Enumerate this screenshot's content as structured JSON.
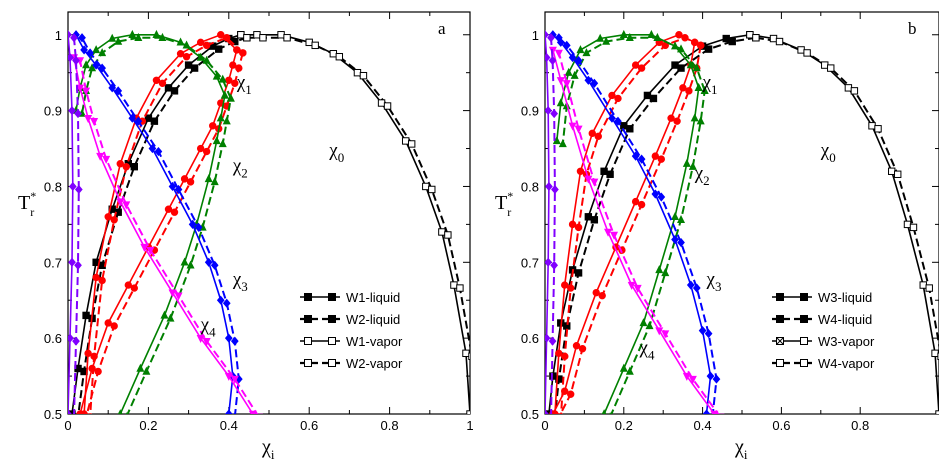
{
  "chart_data": [
    {
      "type": "line",
      "panel_letter": "a",
      "xlabel_main": "χ",
      "xlabel_sub": "i",
      "ylabel_main": "T",
      "ylabel_sup": "*",
      "ylabel_sub": "r",
      "xlim": [
        0,
        1
      ],
      "ylim": [
        0.5,
        1.03
      ],
      "xticks": [
        "0",
        "0.2",
        "0.4",
        "0.6",
        "0.8",
        "1"
      ],
      "yticks": [
        "0.5",
        "0.6",
        "0.7",
        "0.8",
        "0.9",
        "1"
      ],
      "xtick_values": [
        0,
        0.2,
        0.4,
        0.6,
        0.8,
        1.0
      ],
      "ytick_values": [
        0.5,
        0.6,
        0.7,
        0.8,
        0.9,
        1.0
      ],
      "legend": [
        "W1-liquid",
        "W2-liquid",
        "W1-vapor",
        "W2-vapor"
      ],
      "curve_labels": [
        {
          "main": "χ",
          "sub": "0",
          "x": 0.65,
          "y": 0.84
        },
        {
          "main": "χ",
          "sub": "1",
          "x": 0.42,
          "y": 0.93
        },
        {
          "main": "χ",
          "sub": "2",
          "x": 0.41,
          "y": 0.82
        },
        {
          "main": "χ",
          "sub": "3",
          "x": 0.41,
          "y": 0.67
        },
        {
          "main": "χ",
          "sub": "4",
          "x": 0.33,
          "y": 0.61
        }
      ],
      "series": [
        {
          "color": "#000000",
          "x": [
            0.43,
            0.4,
            0.36,
            0.3,
            0.25,
            0.2,
            0.15,
            0.11,
            0.07,
            0.045,
            0.025,
            0.01
          ],
          "y": [
            1.0,
            0.995,
            0.985,
            0.96,
            0.93,
            0.89,
            0.83,
            0.77,
            0.7,
            0.63,
            0.56,
            0.5
          ]
        },
        {
          "color": "#000000",
          "x": [
            0.43,
            0.47,
            0.53,
            0.6,
            0.66,
            0.72,
            0.78,
            0.84,
            0.89,
            0.93,
            0.96,
            0.99,
            1.0
          ],
          "y": [
            1.0,
            1.0,
            1.0,
            0.99,
            0.975,
            0.95,
            0.91,
            0.86,
            0.8,
            0.74,
            0.67,
            0.58,
            0.5
          ]
        },
        {
          "color": "#ff0000",
          "x": [
            0.42,
            0.41,
            0.4,
            0.38,
            0.36,
            0.33,
            0.29,
            0.25,
            0.2,
            0.15,
            0.1,
            0.06,
            0.03
          ],
          "y": [
            0.98,
            0.96,
            0.94,
            0.91,
            0.88,
            0.85,
            0.81,
            0.77,
            0.72,
            0.67,
            0.62,
            0.56,
            0.5
          ]
        },
        {
          "color": "#ff0000",
          "x": [
            0.42,
            0.38,
            0.33,
            0.28,
            0.22,
            0.17,
            0.13,
            0.1,
            0.07,
            0.05,
            0.04
          ],
          "y": [
            0.98,
            1.0,
            0.99,
            0.975,
            0.94,
            0.89,
            0.83,
            0.76,
            0.68,
            0.58,
            0.5
          ]
        },
        {
          "color": "#008000",
          "x": [
            0.13,
            0.18,
            0.24,
            0.29,
            0.32,
            0.35,
            0.37,
            0.38,
            0.39
          ],
          "y": [
            0.5,
            0.56,
            0.63,
            0.7,
            0.75,
            0.81,
            0.86,
            0.89,
            0.92
          ]
        },
        {
          "color": "#008000",
          "x": [
            0.39,
            0.37,
            0.33,
            0.28,
            0.22,
            0.16,
            0.11,
            0.07,
            0.045,
            0.03,
            0.02
          ],
          "y": [
            0.92,
            0.945,
            0.97,
            0.99,
            1.0,
            1.0,
            0.995,
            0.98,
            0.96,
            0.93,
            0.9
          ]
        },
        {
          "color": "#0000ff",
          "x": [
            0.4,
            0.41,
            0.4,
            0.38,
            0.35,
            0.31,
            0.26,
            0.21,
            0.16,
            0.11,
            0.07,
            0.04,
            0.02
          ],
          "y": [
            0.5,
            0.55,
            0.6,
            0.65,
            0.7,
            0.75,
            0.8,
            0.85,
            0.89,
            0.93,
            0.96,
            0.98,
            1.0
          ]
        },
        {
          "color": "#ff00ff",
          "x": [
            0.46,
            0.4,
            0.33,
            0.26,
            0.19,
            0.13,
            0.08,
            0.05,
            0.03,
            0.015
          ],
          "y": [
            0.5,
            0.55,
            0.6,
            0.66,
            0.72,
            0.78,
            0.84,
            0.89,
            0.93,
            0.97
          ]
        },
        {
          "color": "#8000ff",
          "x": [
            0.0,
            0.005,
            0.01,
            0.012,
            0.01,
            0.005,
            0.0
          ],
          "y": [
            0.5,
            0.6,
            0.7,
            0.8,
            0.9,
            0.97,
            1.0
          ]
        }
      ]
    },
    {
      "type": "line",
      "panel_letter": "b",
      "xlabel_main": "χ",
      "xlabel_sub": "i",
      "ylabel_main": "T",
      "ylabel_sup": "*",
      "ylabel_sub": "r",
      "xlim": [
        0,
        1
      ],
      "ylim": [
        0.5,
        1.03
      ],
      "xticks": [
        "0",
        "0.2",
        "0.4",
        "0.6",
        "0.8"
      ],
      "yticks": [
        "0.5",
        "0.6",
        "0.7",
        "0.8",
        "0.9",
        "1"
      ],
      "xtick_values": [
        0,
        0.2,
        0.4,
        0.6,
        0.8
      ],
      "ytick_values": [
        0.5,
        0.6,
        0.7,
        0.8,
        0.9,
        1.0
      ],
      "legend": [
        "W3-liquid",
        "W4-liquid",
        "W3-vapor",
        "W4-vapor"
      ],
      "curve_labels": [
        {
          "main": "χ",
          "sub": "0",
          "x": 0.7,
          "y": 0.84
        },
        {
          "main": "χ",
          "sub": "1",
          "x": 0.4,
          "y": 0.93
        },
        {
          "main": "χ",
          "sub": "2",
          "x": 0.38,
          "y": 0.81
        },
        {
          "main": "χ",
          "sub": "3",
          "x": 0.41,
          "y": 0.67
        },
        {
          "main": "χ",
          "sub": "4",
          "x": 0.24,
          "y": 0.58
        }
      ],
      "series": [
        {
          "color": "#000000",
          "x": [
            0.52,
            0.46,
            0.4,
            0.33,
            0.26,
            0.2,
            0.15,
            0.11,
            0.07,
            0.04,
            0.02,
            0.01
          ],
          "y": [
            1.0,
            0.995,
            0.985,
            0.96,
            0.92,
            0.88,
            0.82,
            0.76,
            0.69,
            0.62,
            0.55,
            0.5
          ]
        },
        {
          "color": "#000000",
          "x": [
            0.52,
            0.58,
            0.65,
            0.71,
            0.77,
            0.83,
            0.88,
            0.92,
            0.96,
            0.99,
            1.0
          ],
          "y": [
            1.0,
            0.995,
            0.98,
            0.96,
            0.93,
            0.88,
            0.82,
            0.75,
            0.67,
            0.58,
            0.5
          ]
        },
        {
          "color": "#ff0000",
          "x": [
            0.38,
            0.37,
            0.35,
            0.32,
            0.28,
            0.23,
            0.18,
            0.13,
            0.08,
            0.05,
            0.02
          ],
          "y": [
            0.99,
            0.96,
            0.93,
            0.89,
            0.84,
            0.78,
            0.72,
            0.66,
            0.59,
            0.53,
            0.5
          ]
        },
        {
          "color": "#ff0000",
          "x": [
            0.38,
            0.34,
            0.29,
            0.23,
            0.17,
            0.12,
            0.09,
            0.07,
            0.05,
            0.035,
            0.025
          ],
          "y": [
            0.99,
            1.0,
            0.99,
            0.96,
            0.92,
            0.87,
            0.82,
            0.75,
            0.67,
            0.58,
            0.5
          ]
        },
        {
          "color": "#008000",
          "x": [
            0.15,
            0.2,
            0.25,
            0.29,
            0.33,
            0.36,
            0.38,
            0.39
          ],
          "y": [
            0.5,
            0.56,
            0.62,
            0.69,
            0.76,
            0.83,
            0.89,
            0.93
          ]
        },
        {
          "color": "#008000",
          "x": [
            0.39,
            0.37,
            0.33,
            0.27,
            0.2,
            0.14,
            0.09,
            0.06,
            0.04,
            0.03
          ],
          "y": [
            0.93,
            0.96,
            0.985,
            1.0,
            1.0,
            0.995,
            0.98,
            0.95,
            0.91,
            0.86
          ]
        },
        {
          "color": "#0000ff",
          "x": [
            0.41,
            0.42,
            0.4,
            0.37,
            0.33,
            0.28,
            0.23,
            0.17,
            0.11,
            0.07,
            0.04,
            0.02
          ],
          "y": [
            0.5,
            0.55,
            0.61,
            0.67,
            0.73,
            0.79,
            0.84,
            0.89,
            0.94,
            0.97,
            0.99,
            1.0
          ]
        },
        {
          "color": "#ff00ff",
          "x": [
            0.43,
            0.36,
            0.29,
            0.22,
            0.16,
            0.11,
            0.07,
            0.04,
            0.02
          ],
          "y": [
            0.5,
            0.55,
            0.61,
            0.67,
            0.74,
            0.81,
            0.88,
            0.94,
            0.98
          ]
        },
        {
          "color": "#8000ff",
          "x": [
            0.0,
            0.004,
            0.008,
            0.01,
            0.008,
            0.004,
            0.0
          ],
          "y": [
            0.5,
            0.6,
            0.7,
            0.8,
            0.9,
            0.97,
            1.0
          ]
        }
      ]
    }
  ]
}
